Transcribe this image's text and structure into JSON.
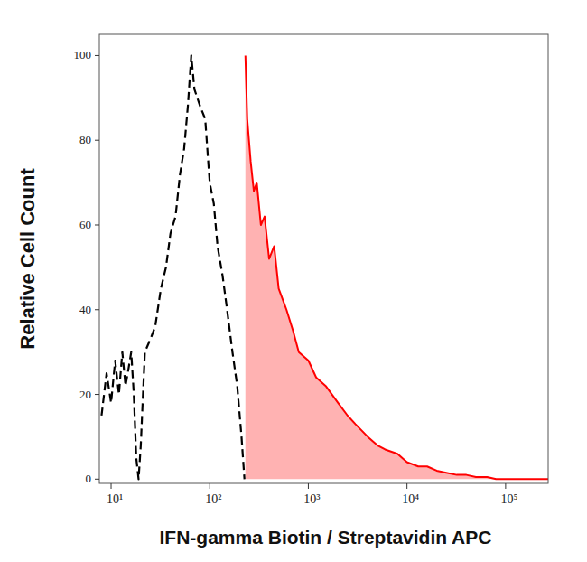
{
  "chart_data": {
    "type": "area",
    "xlabel": "IFN-gamma Biotin / Streptavidin APC",
    "ylabel": "Relative Cell Count",
    "log": "x",
    "grid": false,
    "xlim": [
      7.6,
      270000
    ],
    "ylim": [
      -1,
      105
    ],
    "xticks": [
      {
        "value": 10,
        "label": "10¹"
      },
      {
        "value": 100,
        "label": "10²"
      },
      {
        "value": 1000,
        "label": "10³"
      },
      {
        "value": 10000,
        "label": "10⁴"
      },
      {
        "value": 100000,
        "label": "10⁵"
      }
    ],
    "yticks": [
      0,
      20,
      40,
      60,
      80,
      100
    ],
    "x": [
      8,
      9,
      10,
      11,
      12,
      13,
      14,
      15,
      16,
      17,
      18,
      19,
      20,
      22,
      25,
      28,
      32,
      36,
      40,
      45,
      50,
      55,
      60,
      65,
      70,
      80,
      90,
      100,
      110,
      120,
      135,
      150,
      170,
      190,
      210,
      225,
      230,
      240,
      260,
      280,
      300,
      330,
      360,
      400,
      450,
      500,
      600,
      700,
      800,
      1000,
      1200,
      1500,
      2000,
      2500,
      3000,
      4000,
      5000,
      6000,
      8000,
      10000,
      13000,
      16000,
      20000,
      25000,
      32000,
      40000,
      50000,
      65000,
      80000,
      100000,
      150000,
      200000,
      270000
    ],
    "series": [
      {
        "type": "line",
        "color": "#000000",
        "line_style": "dashed",
        "values": [
          15,
          25,
          18,
          28,
          20,
          30,
          22,
          26,
          30,
          20,
          5,
          0,
          8,
          30,
          33,
          36,
          45,
          50,
          58,
          62,
          72,
          78,
          88,
          100,
          92,
          88,
          85,
          70,
          65,
          55,
          48,
          40,
          30,
          22,
          10,
          0,
          null,
          null,
          null,
          null,
          null,
          null,
          null,
          null,
          null,
          null,
          null,
          null,
          null,
          null,
          null,
          null,
          null,
          null,
          null,
          null,
          null,
          null,
          null,
          null,
          null,
          null,
          null,
          null,
          null,
          null,
          null,
          null,
          null,
          null,
          null,
          null,
          null
        ]
      },
      {
        "type": "area",
        "color": "#ff0000",
        "line_style": "solid",
        "values": [
          null,
          null,
          null,
          null,
          null,
          null,
          null,
          null,
          null,
          null,
          null,
          null,
          null,
          null,
          null,
          null,
          null,
          null,
          null,
          null,
          null,
          null,
          null,
          null,
          null,
          null,
          null,
          null,
          null,
          null,
          null,
          null,
          null,
          null,
          null,
          null,
          100,
          85,
          75,
          68,
          70,
          60,
          62,
          52,
          55,
          45,
          40,
          35,
          30,
          28,
          24,
          22,
          18,
          15,
          13,
          10,
          8,
          7,
          6,
          4,
          3,
          3,
          2,
          1.5,
          1,
          1,
          0.5,
          0.5,
          0,
          0,
          0,
          0,
          0
        ]
      }
    ]
  }
}
